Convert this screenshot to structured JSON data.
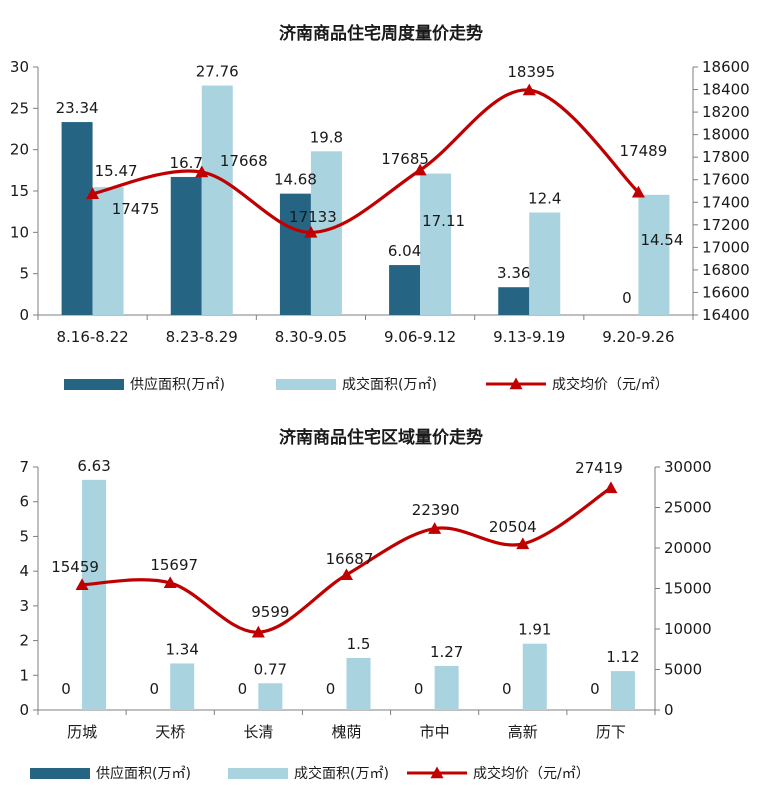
{
  "colors": {
    "supply": "#266483",
    "deal_area": "#a8d3df",
    "price": "#c00000",
    "axis": "#7f7f7f"
  },
  "legend": {
    "supply": "供应面积(万㎡)",
    "deal_area": "成交面积(万㎡)",
    "price": "成交均价（元/㎡）"
  },
  "chart_data": [
    {
      "type": "bar",
      "title": "济南商品住宅周度量价走势",
      "categories": [
        "8.16-8.22",
        "8.23-8.29",
        "8.30-9.05",
        "9.06-9.12",
        "9.13-9.19",
        "9.20-9.26"
      ],
      "series": [
        {
          "name": "供应面积(万㎡)",
          "type": "bar",
          "axis": "left",
          "values": [
            23.34,
            16.7,
            14.68,
            6.04,
            3.36,
            0
          ]
        },
        {
          "name": "成交面积(万㎡)",
          "type": "bar",
          "axis": "left",
          "values": [
            15.47,
            27.76,
            19.8,
            17.11,
            12.4,
            14.54
          ]
        },
        {
          "name": "成交均价（元/㎡）",
          "type": "line",
          "axis": "right",
          "values": [
            17475,
            17668,
            17133,
            17685,
            18395,
            17489
          ]
        }
      ],
      "left_ylim": [
        0,
        30
      ],
      "left_ticks": [
        "0",
        "5",
        "10",
        "15",
        "20",
        "25",
        "30"
      ],
      "right_ylim": [
        16400,
        18600
      ],
      "right_ticks": [
        "16400",
        "16600",
        "16800",
        "17000",
        "17200",
        "17400",
        "17600",
        "17800",
        "18000",
        "18200",
        "18400",
        "18600"
      ],
      "legend_position": "bottom"
    },
    {
      "type": "bar",
      "title": "济南商品住宅区域量价走势",
      "categories": [
        "历城",
        "天桥",
        "长清",
        "槐荫",
        "市中",
        "高新",
        "历下"
      ],
      "series": [
        {
          "name": "供应面积(万㎡)",
          "type": "bar",
          "axis": "left",
          "values": [
            0,
            0,
            0,
            0,
            0,
            0,
            0
          ]
        },
        {
          "name": "成交面积(万㎡)",
          "type": "bar",
          "axis": "left",
          "values": [
            6.63,
            1.34,
            0.77,
            1.5,
            1.27,
            1.91,
            1.12
          ]
        },
        {
          "name": "成交均价（元/㎡）",
          "type": "line",
          "axis": "right",
          "values": [
            15459,
            15697,
            9599,
            16687,
            22390,
            20504,
            27419
          ]
        }
      ],
      "left_ylim": [
        0,
        7
      ],
      "left_ticks": [
        "0",
        "1",
        "2",
        "3",
        "4",
        "5",
        "6",
        "7"
      ],
      "right_ylim": [
        0,
        30000
      ],
      "right_ticks": [
        "0",
        "5000",
        "10000",
        "15000",
        "20000",
        "25000",
        "30000"
      ],
      "legend_position": "bottom"
    }
  ]
}
